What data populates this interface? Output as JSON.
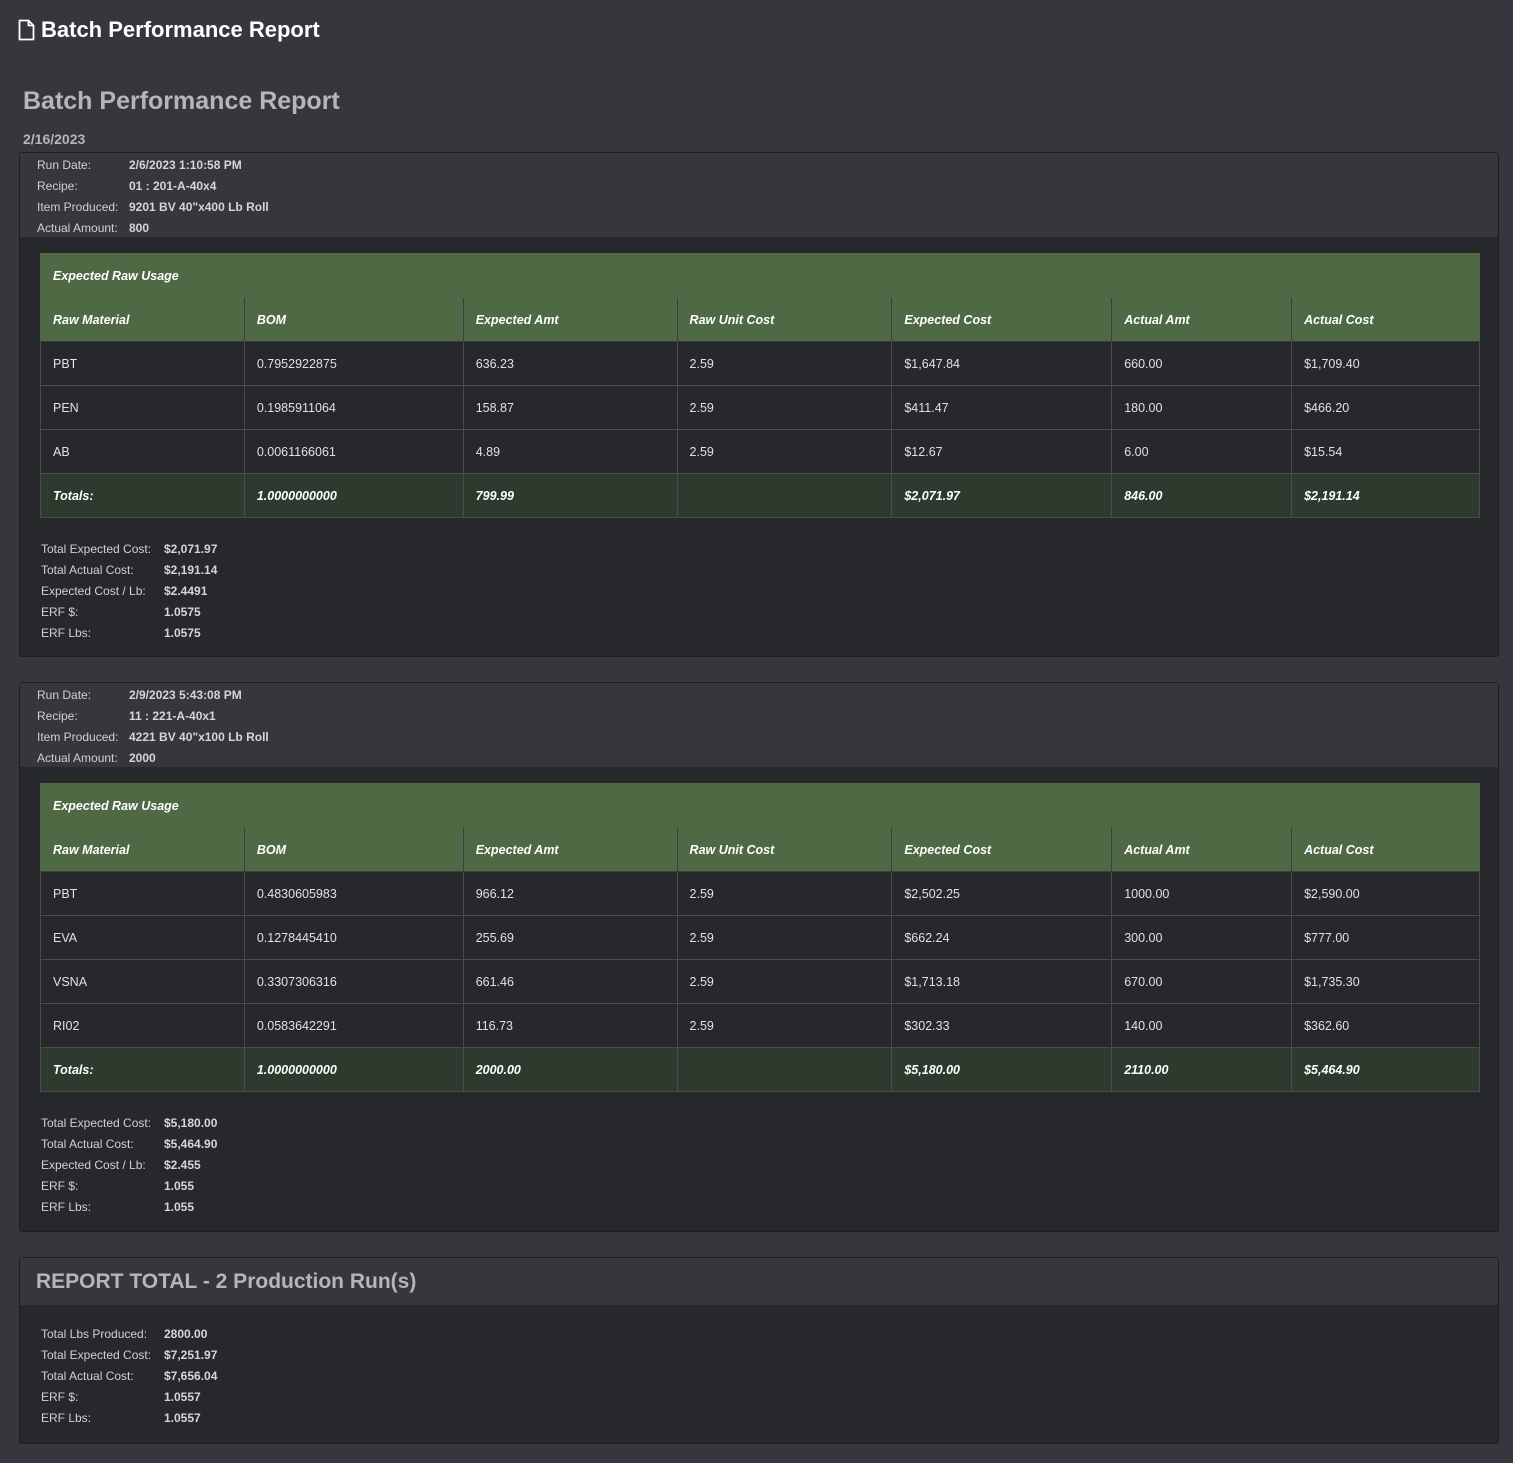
{
  "header": {
    "title": "Batch Performance Report",
    "icon": "document-icon"
  },
  "report": {
    "title": "Batch Performance Report",
    "date": "2/16/2023"
  },
  "labels": {
    "run_date": "Run Date:",
    "recipe": "Recipe:",
    "item_produced": "Item Produced:",
    "actual_amount": "Actual Amount:",
    "table_caption": "Expected Raw Usage",
    "totals": "Totals:",
    "total_expected_cost": "Total Expected Cost:",
    "total_actual_cost": "Total Actual Cost:",
    "expected_cost_per_lb": "Expected Cost / Lb:",
    "erf_dollars": "ERF $:",
    "erf_lbs": "ERF Lbs:",
    "total_lbs_produced": "Total Lbs Produced:"
  },
  "columns": [
    "Raw Material",
    "BOM",
    "Expected Amt",
    "Raw Unit Cost",
    "Expected Cost",
    "Actual Amt",
    "Actual Cost"
  ],
  "runs": [
    {
      "run_date": "2/6/2023 1:10:58 PM",
      "recipe": "01 : 201-A-40x4",
      "item_produced": "9201 BV 40\"x400 Lb Roll",
      "actual_amount": "800",
      "rows": [
        [
          "PBT",
          "0.7952922875",
          "636.23",
          "2.59",
          "$1,647.84",
          "660.00",
          "$1,709.40"
        ],
        [
          "PEN",
          "0.1985911064",
          "158.87",
          "2.59",
          "$411.47",
          "180.00",
          "$466.20"
        ],
        [
          "AB",
          "0.0061166061",
          "4.89",
          "2.59",
          "$12.67",
          "6.00",
          "$15.54"
        ]
      ],
      "totals": [
        "1.0000000000",
        "799.99",
        "",
        "$2,071.97",
        "846.00",
        "$2,191.14"
      ],
      "summary": {
        "total_expected_cost": "$2,071.97",
        "total_actual_cost": "$2,191.14",
        "expected_cost_per_lb": "$2.4491",
        "erf_dollars": "1.0575",
        "erf_lbs": "1.0575"
      }
    },
    {
      "run_date": "2/9/2023 5:43:08 PM",
      "recipe": "11 : 221-A-40x1",
      "item_produced": "4221 BV 40\"x100 Lb Roll",
      "actual_amount": "2000",
      "rows": [
        [
          "PBT",
          "0.4830605983",
          "966.12",
          "2.59",
          "$2,502.25",
          "1000.00",
          "$2,590.00"
        ],
        [
          "EVA",
          "0.1278445410",
          "255.69",
          "2.59",
          "$662.24",
          "300.00",
          "$777.00"
        ],
        [
          "VSNA",
          "0.3307306316",
          "661.46",
          "2.59",
          "$1,713.18",
          "670.00",
          "$1,735.30"
        ],
        [
          "RI02",
          "0.0583642291",
          "116.73",
          "2.59",
          "$302.33",
          "140.00",
          "$362.60"
        ]
      ],
      "totals": [
        "1.0000000000",
        "2000.00",
        "",
        "$5,180.00",
        "2110.00",
        "$5,464.90"
      ],
      "summary": {
        "total_expected_cost": "$5,180.00",
        "total_actual_cost": "$5,464.90",
        "expected_cost_per_lb": "$2.455",
        "erf_dollars": "1.055",
        "erf_lbs": "1.055"
      }
    }
  ],
  "report_total": {
    "title": "REPORT TOTAL - 2 Production Run(s)",
    "total_lbs_produced": "2800.00",
    "total_expected_cost": "$7,251.97",
    "total_actual_cost": "$7,656.04",
    "erf_dollars": "1.0557",
    "erf_lbs": "1.0557"
  },
  "colors": {
    "page_bg": "#36373c",
    "panel_bg": "#27282c",
    "table_header": "#4e6944",
    "totals_row": "#2f3a2f"
  }
}
